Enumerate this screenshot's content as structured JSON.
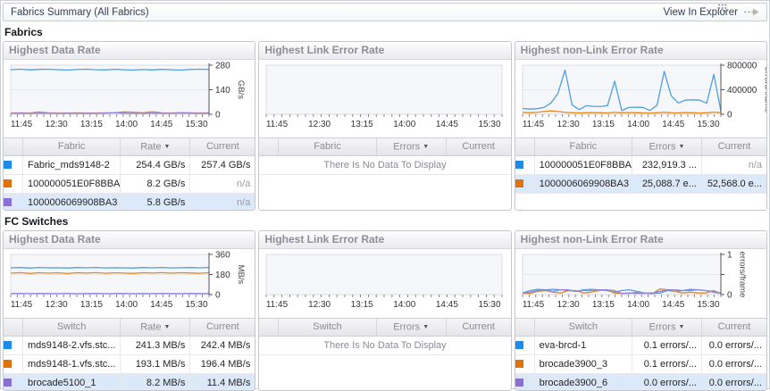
{
  "header": {
    "title": "Fabrics Summary (All Fabrics)",
    "action_label": "View In Explorer"
  },
  "sections": {
    "fabrics": "Fabrics",
    "fc_switches": "FC Switches"
  },
  "panel_titles": {
    "data_rate": "Highest Data Rate",
    "link_error": "Highest Link Error Rate",
    "nonlink_error": "Highest non-Link Error Rate"
  },
  "colors": {
    "series_blue": "#1d8ce8",
    "series_orange": "#e0720a",
    "series_purple": "#8a6fd4",
    "line_blue": "#4e9fe0",
    "line_orange": "#e5871f",
    "line_purple": "#9383d6",
    "row_highlight": "#dce9f8"
  },
  "chart_data": [
    {
      "id": "fabrics-highest-data-rate",
      "type": "line",
      "title": "Highest Data Rate",
      "x_ticks": [
        "11:45",
        "12:30",
        "13:15",
        "14:00",
        "14:45",
        "15:30"
      ],
      "ylabel": "GB/s",
      "ylim": [
        0,
        280
      ],
      "y_ticks": [
        0,
        140,
        280
      ],
      "y_tick_labels": [
        "0",
        "140",
        "280"
      ],
      "series": [
        {
          "name": "Fabric_mds9148-2",
          "color": "#4e9fe0",
          "values": [
            254,
            257,
            253,
            256,
            257,
            254,
            252,
            255,
            257,
            254,
            253,
            256,
            254,
            252,
            255,
            253,
            256,
            254,
            252,
            255,
            257,
            255
          ]
        },
        {
          "name": "100000051E0F8BBA",
          "color": "#e5871f",
          "values": [
            7,
            8,
            7,
            13,
            8,
            7,
            7,
            8,
            7,
            7,
            8,
            8,
            14,
            12,
            8,
            15,
            8,
            7,
            9,
            8,
            7,
            8
          ]
        },
        {
          "name": "1000006069908BA3",
          "color": "#9383d6",
          "values": [
            5,
            6,
            5,
            6,
            6,
            5,
            6,
            5,
            6,
            5,
            6,
            8,
            6,
            5,
            5,
            6,
            6,
            5,
            7,
            6,
            5,
            6
          ]
        }
      ]
    },
    {
      "id": "fabrics-highest-link-error-rate",
      "type": "line",
      "title": "Highest Link Error Rate",
      "x_ticks": [
        "11:45",
        "12:30",
        "13:15",
        "14:00",
        "14:45",
        "15:30"
      ],
      "ylabel": "",
      "ylim": null,
      "y_ticks": [],
      "y_tick_labels": [],
      "series": []
    },
    {
      "id": "fabrics-highest-nonlink-error-rate",
      "type": "line",
      "title": "Highest non-Link Error Rate",
      "x_ticks": [
        "11:45",
        "12:30",
        "13:15",
        "14:00",
        "14:45",
        "15:30"
      ],
      "ylabel": "errors/frame",
      "ylim": [
        0,
        800000
      ],
      "y_ticks": [
        0,
        400000,
        800000
      ],
      "y_tick_labels": [
        "0",
        "400000",
        "800000"
      ],
      "series": [
        {
          "name": "100000051E0F8BBA",
          "color": "#4e9fe0",
          "values": [
            95000,
            85000,
            90000,
            110000,
            180000,
            340000,
            720000,
            150000,
            75000,
            140000,
            130000,
            125000,
            140000,
            540000,
            60000,
            110000,
            115000,
            112000,
            60000,
            150000,
            700000,
            300000,
            185000,
            230000,
            235000,
            230000,
            180000,
            650000,
            50000
          ]
        },
        {
          "name": "1000006069908BA3",
          "color": "#e5871f",
          "values": [
            30000,
            25000,
            30000,
            45000,
            55000,
            45000,
            30000,
            25000,
            22000,
            25000,
            28000,
            25000,
            22000,
            30000,
            25000,
            28000,
            25000,
            22000,
            20000,
            25000,
            30000,
            25000,
            22000,
            28000,
            25000,
            20000,
            25000,
            35000,
            25000
          ]
        }
      ]
    },
    {
      "id": "fc-highest-data-rate",
      "type": "line",
      "title": "Highest Data Rate",
      "x_ticks": [
        "11:45",
        "12:30",
        "13:15",
        "14:00",
        "14:45",
        "15:30"
      ],
      "ylabel": "MB/s",
      "ylim": [
        0,
        360
      ],
      "y_ticks": [
        0,
        180,
        360
      ],
      "y_tick_labels": [
        "0",
        "180",
        "360"
      ],
      "series": [
        {
          "name": "mds9148-2.vfs.stc...",
          "color": "#4e9fe0",
          "values": [
            240,
            242,
            238,
            243,
            240,
            241,
            238,
            242,
            240,
            243,
            239,
            241,
            240,
            238,
            242,
            240,
            243,
            239,
            241,
            242,
            240,
            242
          ]
        },
        {
          "name": "mds9148-1.vfs.stc...",
          "color": "#e5871f",
          "values": [
            192,
            197,
            190,
            196,
            192,
            195,
            189,
            196,
            193,
            197,
            191,
            195,
            193,
            190,
            196,
            193,
            197,
            192,
            196,
            194,
            191,
            196
          ]
        },
        {
          "name": "brocade5100_1",
          "color": "#9383d6",
          "values": [
            10,
            11,
            9,
            11,
            10,
            9,
            11,
            8,
            10,
            11,
            9,
            10,
            11,
            9,
            10,
            9,
            11,
            10,
            9,
            11,
            10,
            9
          ]
        }
      ]
    },
    {
      "id": "fc-highest-link-error-rate",
      "type": "line",
      "title": "Highest Link Error Rate",
      "x_ticks": [
        "11:45",
        "12:30",
        "13:15",
        "14:00",
        "14:45",
        "15:30"
      ],
      "ylabel": "",
      "ylim": null,
      "y_ticks": [],
      "y_tick_labels": [],
      "series": []
    },
    {
      "id": "fc-highest-nonlink-error-rate",
      "type": "line",
      "title": "Highest non-Link Error Rate",
      "x_ticks": [
        "11:45",
        "12:30",
        "13:15",
        "14:00",
        "14:45",
        "15:30"
      ],
      "ylabel": "errors/frame",
      "ylim": [
        0,
        1
      ],
      "y_ticks": [
        0,
        0.5,
        1
      ],
      "y_tick_labels": [
        "0",
        "",
        "1"
      ],
      "series": [
        {
          "name": "eva-brcd-1",
          "color": "#4e9fe0",
          "values": [
            0.04,
            0.1,
            0.13,
            0.12,
            0.13,
            0.12,
            0.1,
            0.08,
            0.12,
            0.13,
            0.12,
            0.1,
            0.06,
            0.1,
            0.12,
            0.08,
            0.04,
            0.03,
            0.04,
            0.1,
            0.08,
            0.1,
            0.13,
            0.12,
            0.1,
            0.06,
            0.03
          ]
        },
        {
          "name": "brocade3900_3",
          "color": "#e5871f",
          "values": [
            0.03,
            0.03,
            0.08,
            0.1,
            0.06,
            0.04,
            0.1,
            0.1,
            0.04,
            0.06,
            0.1,
            0.12,
            0.04,
            0.03,
            0.03,
            0.06,
            0.04,
            0.02,
            0.14,
            0.12,
            0.08,
            0.04,
            0.06,
            0.04,
            0.04,
            0.1,
            0.03
          ]
        },
        {
          "name": "brocade3900_6",
          "color": "#9383d6",
          "values": [
            0.04,
            0.06,
            0.1,
            0.11,
            0.08,
            0.12,
            0.12,
            0.08,
            0.1,
            0.1,
            0.12,
            0.12,
            0.1,
            0.03,
            0.04,
            0.03,
            0.03,
            0.04,
            0.08,
            0.12,
            0.12,
            0.1,
            0.1,
            0.12,
            0.1,
            0.08,
            0.03
          ]
        }
      ]
    }
  ],
  "tables": {
    "fabrics_data_rate": {
      "columns": [
        "Fabric",
        "Rate",
        "Current"
      ],
      "sort_column": "Rate",
      "empty_message": null,
      "rows": [
        {
          "color": "#1d8ce8",
          "name": "Fabric_mds9148-2",
          "value": "254.4 GB/s",
          "current": "257.4 GB/s",
          "highlight": false
        },
        {
          "color": "#e0720a",
          "name": "100000051E0F8BBA",
          "value": "8.2 GB/s",
          "current": "n/a",
          "highlight": false
        },
        {
          "color": "#8a6fd4",
          "name": "1000006069908BA3",
          "value": "5.8 GB/s",
          "current": "n/a",
          "highlight": true
        }
      ]
    },
    "fabrics_link_error": {
      "columns": [
        "Fabric",
        "Errors",
        "Current"
      ],
      "sort_column": "Errors",
      "empty_message": "There Is No Data To Display",
      "rows": []
    },
    "fabrics_nonlink_error": {
      "columns": [
        "Fabric",
        "Errors",
        "Current"
      ],
      "sort_column": "Errors",
      "empty_message": null,
      "rows": [
        {
          "color": "#1d8ce8",
          "name": "100000051E0F8BBA",
          "value": "232,919.3 ...",
          "current": "n/a",
          "highlight": false
        },
        {
          "color": "#e0720a",
          "name": "1000006069908BA3",
          "value": "25,088.7 e...",
          "current": "52,568.0 e...",
          "highlight": true
        }
      ]
    },
    "fc_data_rate": {
      "columns": [
        "Switch",
        "Rate",
        "Current"
      ],
      "sort_column": "Rate",
      "empty_message": null,
      "rows": [
        {
          "color": "#1d8ce8",
          "name": "mds9148-2.vfs.stc...",
          "value": "241.3 MB/s",
          "current": "242.4 MB/s",
          "highlight": false
        },
        {
          "color": "#e0720a",
          "name": "mds9148-1.vfs.stc...",
          "value": "193.1 MB/s",
          "current": "196.4 MB/s",
          "highlight": false
        },
        {
          "color": "#8a6fd4",
          "name": "brocade5100_1",
          "value": "8.2 MB/s",
          "current": "11.4 MB/s",
          "highlight": true
        }
      ]
    },
    "fc_link_error": {
      "columns": [
        "Switch",
        "Errors",
        "Current"
      ],
      "sort_column": "Errors",
      "empty_message": "There Is No Data To Display",
      "rows": []
    },
    "fc_nonlink_error": {
      "columns": [
        "Switch",
        "Errors",
        "Current"
      ],
      "sort_column": "Errors",
      "empty_message": null,
      "rows": [
        {
          "color": "#1d8ce8",
          "name": "eva-brcd-1",
          "value": "0.1 errors/...",
          "current": "0.0 errors/...",
          "highlight": false
        },
        {
          "color": "#e0720a",
          "name": "brocade3900_3",
          "value": "0.1 errors/...",
          "current": "0.0 errors/...",
          "highlight": false
        },
        {
          "color": "#8a6fd4",
          "name": "brocade3900_6",
          "value": "0.0 errors/...",
          "current": "0.0 errors/...",
          "highlight": true
        }
      ]
    }
  },
  "icons": {
    "explorer_arrow": "dashed-right-arrow-icon",
    "chart_options": "chart-options-icon",
    "sort_desc": "sort-descending-icon"
  }
}
